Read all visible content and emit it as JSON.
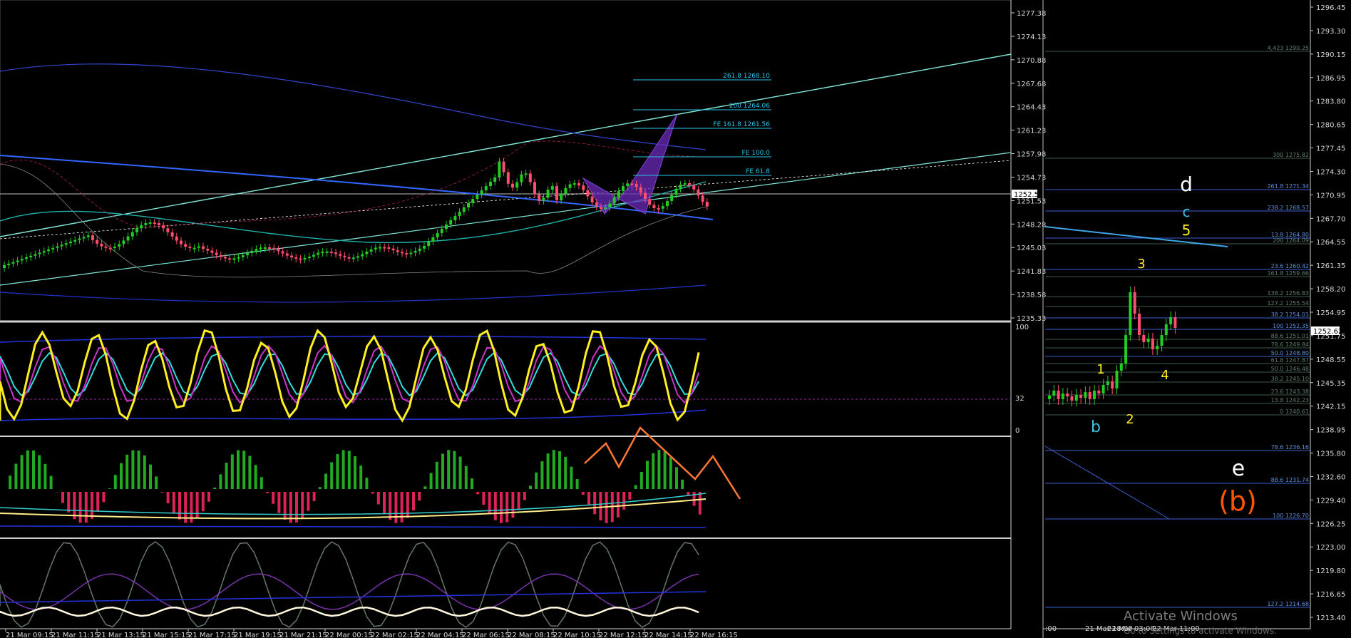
{
  "left_chart": {
    "price_axis_labels": [
      "1277.38",
      "1274.13",
      "1270.88",
      "1267.68",
      "1264.43",
      "1261.23",
      "1257.98",
      "1254.73",
      "1251.53",
      "1248.28",
      "1245.03",
      "1241.83",
      "1238.58",
      "1235.33"
    ],
    "current_price": "1252.51",
    "time_labels": [
      "21 Mar 09:15",
      "21 Mar 11:15",
      "21 Mar 13:15",
      "21 Mar 15:15",
      "21 Mar 17:15",
      "21 Mar 19:15",
      "21 Mar 21:15",
      "22 Mar 00:15",
      "22 Mar 02:15",
      "22 Mar 04:15",
      "22 Mar 06:15",
      "22 Mar 08:15",
      "22 Mar 10:15",
      "22 Mar 12:15",
      "22 Mar 14:15",
      "22 Mar 16:15"
    ],
    "fib_labels": [
      "261.8 1268.10",
      "200 1264.06",
      "FE 161.8 1261.56",
      "FE 100.0",
      "FE 61.8"
    ],
    "oscillator_axis": [
      "100",
      "32",
      "0"
    ]
  },
  "right_chart": {
    "price_axis_labels": [
      "1296.45",
      "1293.30",
      "1290.15",
      "1286.95",
      "1283.80",
      "1280.65",
      "1277.45",
      "1274.30",
      "1270.95",
      "1267.70",
      "1264.55",
      "1261.35",
      "1258.20",
      "1254.95",
      "1251.75",
      "1248.55",
      "1245.35",
      "1242.15",
      "1238.95",
      "1235.80",
      "1232.60",
      "1229.40",
      "1226.25",
      "1223.00",
      "1219.80",
      "1216.65",
      "1213.40"
    ],
    "current_price": "1252.62",
    "time_labels": [
      ":00",
      "21 Mar 18:00",
      "22 Mar 03:00",
      "22 Mar 11:00"
    ],
    "fib_labels": [
      "4,423 1290.25",
      "300 1275.82",
      "261.8 1271.34",
      "238.2 1268.57",
      "13.8 1264.80",
      "200 1264.09",
      "23.6 1260.42",
      "161.8 1259.66",
      "138.2 1256.83",
      "127.2 1255.54",
      "38.2 1254.01",
      "100 1252.35",
      "88.6 1251.01",
      "78.6 1249.84",
      "50.0 1248.80",
      "61.8 1247.87",
      "50.0 1246.48",
      "38.2 1245.10",
      "23.6 1243.38",
      "13.8 1242.23",
      "0 1240.61",
      "78.6 1236.16",
      "88.6 1231.74",
      "100 1226.70",
      "127.2 1214.68"
    ],
    "wave_labels": {
      "d": "d",
      "c": "c",
      "five": "5",
      "three": "3",
      "one": "1",
      "four": "4",
      "two": "2",
      "b": "b",
      "e": "e",
      "b_paren": "(b)"
    }
  },
  "watermark": {
    "title": "Activate Windows",
    "subtitle": "Go to Settings to activate Windows."
  },
  "colors": {
    "bull": "#22cc22",
    "bear": "#ff4d6d",
    "cyan": "#29c3e6",
    "blue": "#2233dd",
    "yellow": "#ffee22",
    "magenta": "#cc33cc",
    "orange": "#ff7733",
    "wave_orange": "#ff5500"
  },
  "chart_data": {
    "type": "candlestick",
    "x": [
      "21 Mar 09:15",
      "21 Mar 11:15",
      "21 Mar 13:15",
      "21 Mar 15:15",
      "21 Mar 17:15",
      "21 Mar 19:15",
      "21 Mar 21:15",
      "22 Mar 00:15",
      "22 Mar 02:15",
      "22 Mar 04:15",
      "22 Mar 06:15",
      "22 Mar 08:15",
      "22 Mar 10:15",
      "22 Mar 12:15",
      "22 Mar 14:15",
      "22 Mar 16:15"
    ],
    "close": [
      1244.0,
      1247.5,
      1244.5,
      1246.5,
      1245.0,
      1244.5,
      1244.0,
      1243.5,
      1244.5,
      1245.5,
      1247.0,
      1258.0,
      1252.0,
      1250.5,
      1254.5,
      1252.5
    ],
    "ylim": [
      1235.33,
      1277.38
    ],
    "right_ylim": [
      1213.4,
      1296.45
    ]
  }
}
